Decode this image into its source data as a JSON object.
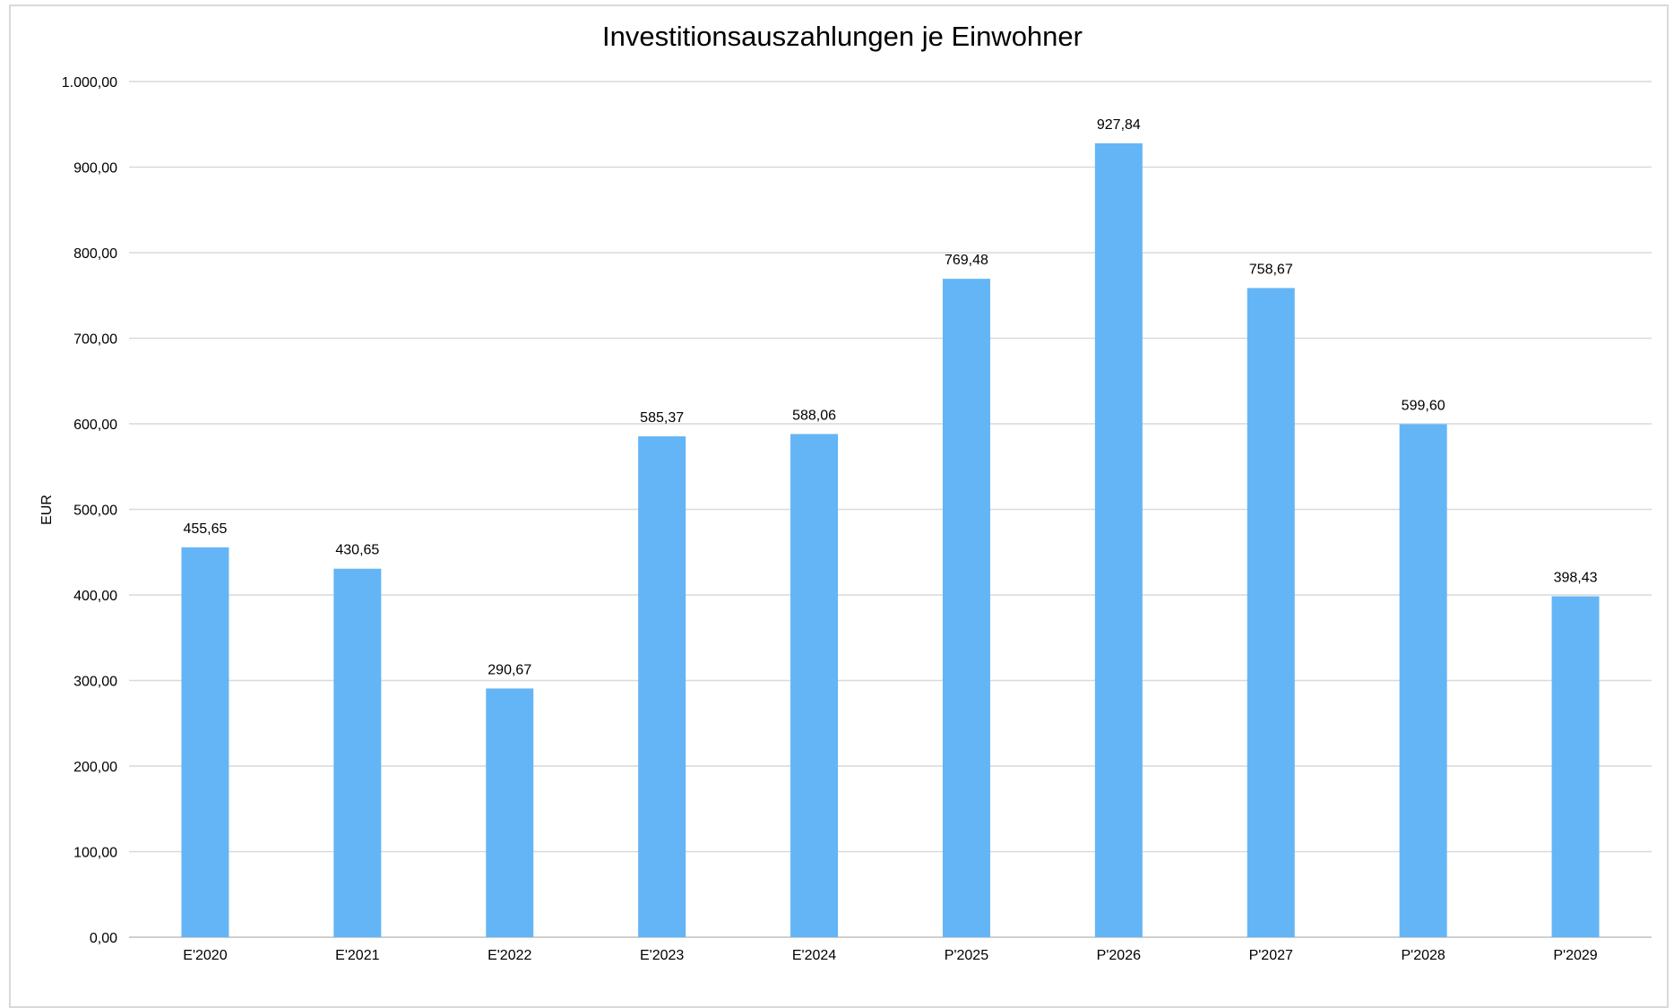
{
  "chart_data": {
    "type": "bar",
    "title": "Investitionsauszahlungen je Einwohner",
    "xlabel": "",
    "ylabel": "EUR",
    "ylim": [
      0,
      1000
    ],
    "yticks": [
      "0,00",
      "100,00",
      "200,00",
      "300,00",
      "400,00",
      "500,00",
      "600,00",
      "700,00",
      "800,00",
      "900,00",
      "1.000,00"
    ],
    "categories": [
      "E'2020",
      "E'2021",
      "E'2022",
      "E'2023",
      "E'2024",
      "P'2025",
      "P'2026",
      "P'2027",
      "P'2028",
      "P'2029"
    ],
    "values": [
      455.65,
      430.65,
      290.67,
      585.37,
      588.06,
      769.48,
      927.84,
      758.67,
      599.6,
      398.43
    ],
    "value_labels": [
      "455,65",
      "430,65",
      "290,67",
      "585,37",
      "588,06",
      "769,48",
      "927,84",
      "758,67",
      "599,60",
      "398,43"
    ],
    "bar_color": "#64b5f6",
    "grid": true,
    "legend": "none"
  }
}
